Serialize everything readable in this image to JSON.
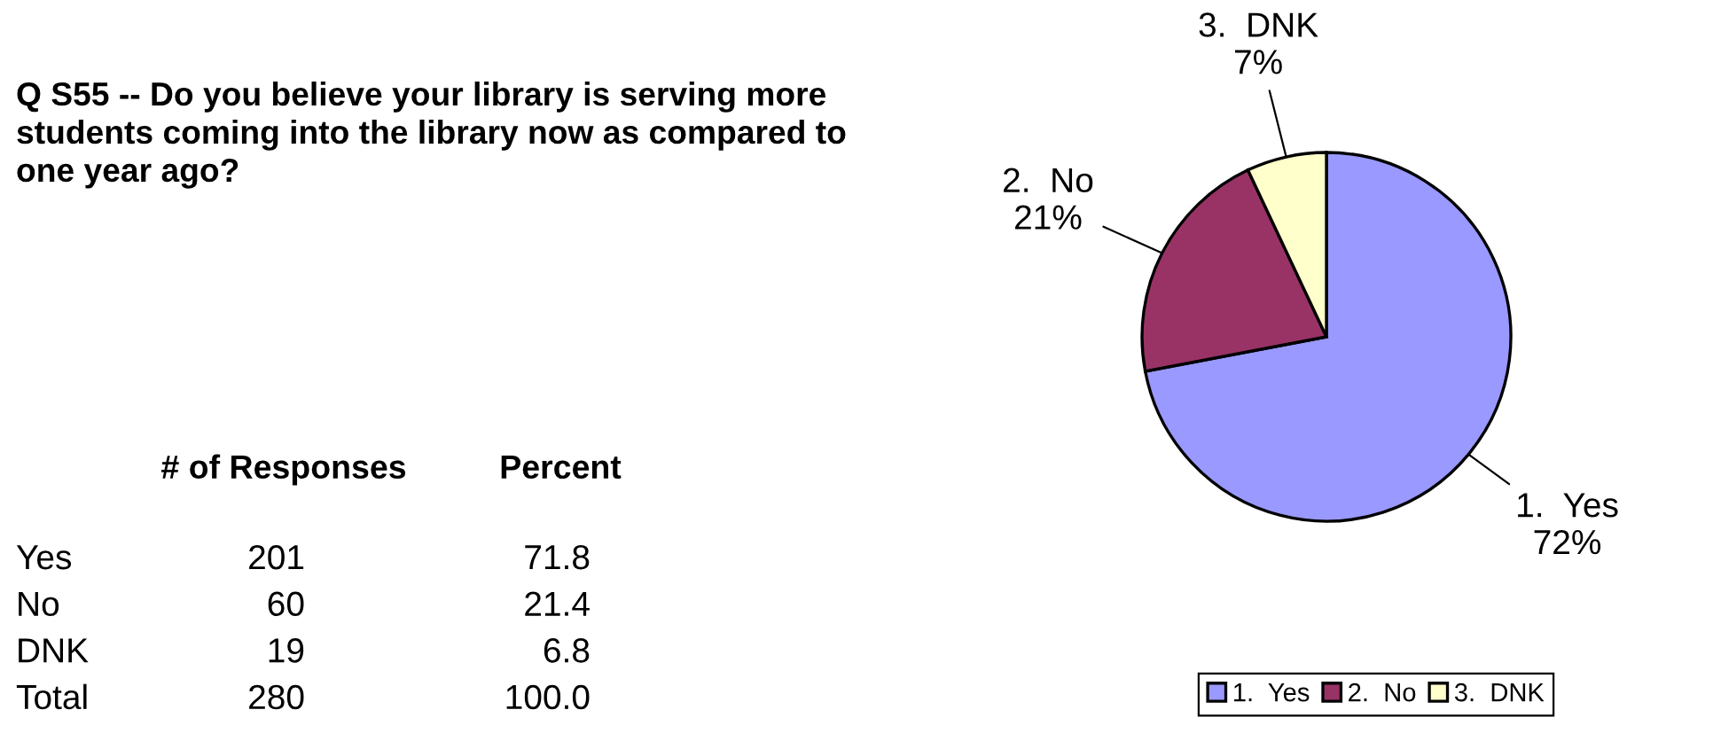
{
  "chart_data": {
    "type": "pie",
    "title": "Q S55 -- Do you believe your library is serving more\nstudents coming into the library now as compared to\none year ago?",
    "categories": [
      "1.  Yes",
      "2.  No",
      "3.  DNK"
    ],
    "values": [
      72,
      21,
      7
    ],
    "colors": [
      "#9999ff",
      "#993366",
      "#ffffcc"
    ],
    "value_labels": [
      "72%",
      "21%",
      "7%"
    ],
    "legend": "bottom",
    "annotations": [
      "# of Responses",
      "Percent",
      "Yes",
      "201",
      "71.8",
      "No",
      "60",
      "21.4",
      "DNK",
      "19",
      "6.8",
      "Total",
      "280",
      "100.0"
    ]
  }
}
